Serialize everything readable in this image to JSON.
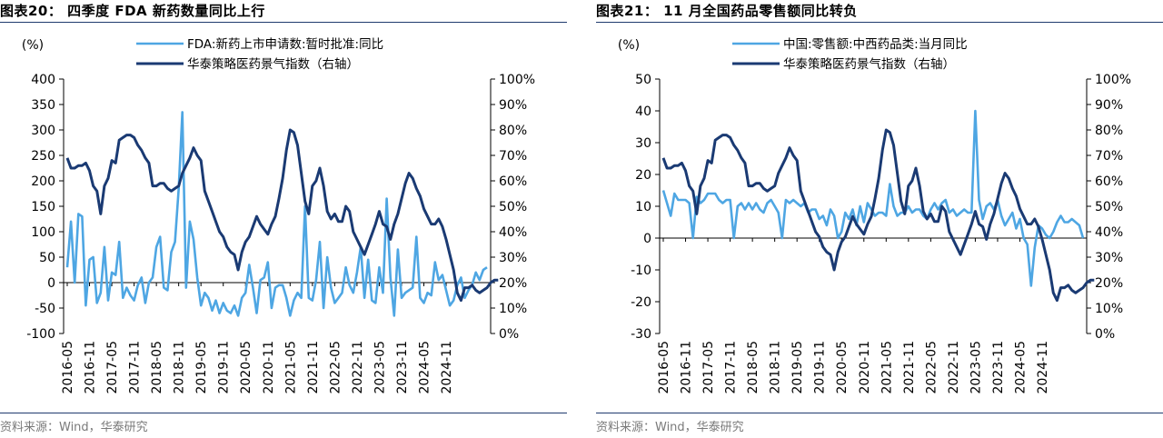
{
  "colors": {
    "light": "#4ea6e3",
    "dark": "#1a3a73",
    "rule": "#1f3a6e"
  },
  "charts": [
    {
      "title": "图表20：  四季度 FDA 新药数量同比上行",
      "source": "资料来源：Wind，华泰研究",
      "chart_data": {
        "type": "line",
        "y_left_label": "(%)",
        "y_left_range": [
          -100,
          400
        ],
        "y_left_ticks": [
          "400",
          "350",
          "300",
          "250",
          "200",
          "150",
          "100",
          "50",
          "0",
          "-50",
          "-100"
        ],
        "y_right_range": [
          0,
          100
        ],
        "y_right_ticks": [
          "100%",
          "90%",
          "80%",
          "70%",
          "60%",
          "50%",
          "40%",
          "30%",
          "20%",
          "10%",
          "0%"
        ],
        "x_ticks": [
          "2016-05",
          "2016-11",
          "2017-05",
          "2017-11",
          "2018-05",
          "2018-11",
          "2019-05",
          "2019-11",
          "2020-05",
          "2020-11",
          "2021-05",
          "2021-11",
          "2022-05",
          "2022-11",
          "2023-05",
          "2023-11",
          "2024-05",
          "2024-11"
        ],
        "x_start": "2016-05",
        "series": [
          {
            "name": "FDA:新药上市申请数:暂时批准:同比",
            "axis": "left",
            "color": "light",
            "values": [
              30,
              120,
              0,
              135,
              130,
              -45,
              45,
              50,
              -40,
              -20,
              70,
              -35,
              20,
              15,
              80,
              -30,
              -10,
              -25,
              -35,
              -5,
              10,
              -40,
              0,
              10,
              70,
              90,
              -10,
              -15,
              60,
              80,
              185,
              335,
              -10,
              120,
              85,
              10,
              -45,
              -20,
              -30,
              -55,
              -35,
              -60,
              -40,
              -55,
              -60,
              -45,
              -65,
              -30,
              -20,
              35,
              -10,
              -60,
              5,
              10,
              40,
              -50,
              -10,
              -5,
              -5,
              -30,
              -65,
              -35,
              -20,
              -30,
              150,
              -30,
              -35,
              5,
              80,
              -50,
              50,
              -10,
              -40,
              -30,
              -20,
              30,
              -5,
              -20,
              20,
              70,
              -30,
              45,
              -35,
              -40,
              30,
              -20,
              165,
              10,
              -65,
              65,
              -30,
              -20,
              -15,
              -10,
              90,
              -30,
              -40,
              -20,
              -25,
              40,
              5,
              15,
              -15,
              -45,
              -35,
              -5,
              10,
              -30,
              -15,
              -5,
              20,
              5,
              25,
              30
            ]
          },
          {
            "name": "华泰策略医药景气指数（右轴）",
            "axis": "right",
            "color": "dark",
            "values": [
              69,
              65,
              65,
              66,
              66,
              67,
              64,
              58,
              56,
              47,
              58,
              61,
              68,
              67,
              76,
              77,
              78,
              78,
              77,
              74,
              72,
              69,
              67,
              58,
              58,
              59,
              59,
              57,
              56,
              57,
              58,
              63,
              66,
              69,
              73,
              70,
              68,
              56,
              52,
              48,
              44,
              40,
              38,
              34,
              32,
              31,
              25,
              32,
              36,
              38,
              42,
              46,
              43,
              41,
              39,
              43,
              46,
              53,
              61,
              72,
              80,
              79,
              74,
              63,
              52,
              47,
              58,
              60,
              65,
              58,
              48,
              45,
              47,
              44,
              44,
              50,
              48,
              40,
              37,
              34,
              31,
              35,
              39,
              43,
              48,
              43,
              42,
              37,
              43,
              47,
              53,
              59,
              63,
              61,
              57,
              54,
              49,
              46,
              43,
              43,
              45,
              42,
              37,
              31,
              25,
              16,
              13,
              18,
              18,
              19,
              17,
              16,
              17,
              18,
              20,
              21,
              21
            ]
          }
        ]
      }
    },
    {
      "title": "图表21：  11 月全国药品零售额同比转负",
      "source": "资料来源：Wind，华泰研究",
      "chart_data": {
        "type": "line",
        "y_left_label": "(%)",
        "y_left_range": [
          -30,
          50
        ],
        "y_left_ticks": [
          "50",
          "40",
          "30",
          "20",
          "10",
          "0",
          "-10",
          "-20",
          "-30"
        ],
        "y_right_range": [
          0,
          100
        ],
        "y_right_ticks": [
          "100%",
          "90%",
          "80%",
          "70%",
          "60%",
          "50%",
          "40%",
          "30%",
          "20%",
          "10%",
          "0%"
        ],
        "x_ticks": [
          "2016-05",
          "2016-11",
          "2017-05",
          "2017-11",
          "2018-05",
          "2018-11",
          "2019-05",
          "2019-11",
          "2020-05",
          "2020-11",
          "2021-05",
          "2021-11",
          "2022-05",
          "2022-11",
          "2023-05",
          "2023-11",
          "2024-05",
          "2024-11"
        ],
        "x_start": "2016-05",
        "series": [
          {
            "name": "中国:零售额:中西药品类:当月同比",
            "axis": "left",
            "color": "light",
            "values": [
              15,
              11,
              7,
              14,
              12,
              12,
              12,
              11,
              0,
              13,
              11,
              12,
              14,
              14,
              14,
              12,
              11,
              12,
              12,
              0,
              10,
              11,
              9,
              11,
              9,
              11,
              9,
              8,
              11,
              12,
              10,
              8,
              0,
              12,
              11,
              12,
              11,
              10,
              11,
              8,
              9,
              9,
              6,
              7,
              4,
              9,
              7,
              0,
              2,
              8,
              6,
              9,
              4,
              10,
              5,
              11,
              9,
              7,
              8,
              8,
              7,
              17,
              10,
              7,
              8,
              8,
              10,
              8,
              9,
              9,
              7,
              6,
              9,
              11,
              9,
              11,
              12,
              8,
              9,
              7,
              8,
              9,
              8,
              8,
              40,
              12,
              6,
              10,
              11,
              9,
              12,
              7,
              4,
              6,
              8,
              3,
              6,
              0,
              -2,
              -15,
              -3,
              4,
              3,
              1,
              0,
              2,
              5,
              7,
              5,
              5,
              6,
              5,
              4,
              0
            ]
          },
          {
            "name": "华泰策略医药景气指数（右轴）",
            "axis": "right",
            "color": "dark",
            "values": [
              69,
              65,
              65,
              66,
              66,
              67,
              64,
              58,
              56,
              47,
              58,
              61,
              68,
              67,
              76,
              77,
              78,
              78,
              77,
              74,
              72,
              69,
              67,
              58,
              58,
              59,
              59,
              57,
              56,
              57,
              58,
              63,
              66,
              69,
              73,
              70,
              68,
              56,
              52,
              48,
              44,
              40,
              38,
              34,
              32,
              31,
              25,
              32,
              36,
              38,
              42,
              46,
              43,
              41,
              39,
              43,
              46,
              53,
              61,
              72,
              80,
              79,
              74,
              63,
              52,
              47,
              58,
              60,
              65,
              58,
              48,
              45,
              47,
              44,
              44,
              50,
              48,
              40,
              37,
              34,
              31,
              35,
              39,
              43,
              48,
              43,
              42,
              37,
              43,
              47,
              53,
              59,
              63,
              61,
              57,
              54,
              49,
              46,
              43,
              43,
              45,
              42,
              37,
              31,
              25,
              16,
              13,
              18,
              18,
              19,
              17,
              16,
              17,
              18,
              20,
              21,
              21
            ]
          }
        ]
      }
    }
  ]
}
